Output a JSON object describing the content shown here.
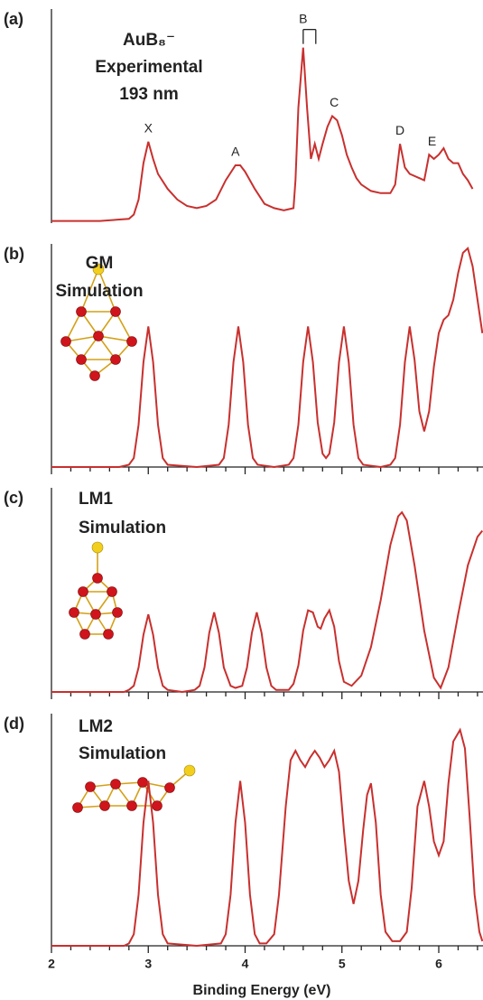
{
  "chart_data": [
    {
      "type": "line",
      "panel_label": "(a)",
      "title": [
        "AuB₈⁻",
        "Experimental",
        "193 nm"
      ],
      "color": "#c8302e",
      "xlim": [
        2,
        6.45
      ],
      "ylim": [
        0,
        1
      ],
      "x": [
        2.0,
        2.5,
        2.8,
        2.85,
        2.9,
        2.95,
        3.0,
        3.05,
        3.1,
        3.2,
        3.3,
        3.4,
        3.5,
        3.6,
        3.7,
        3.8,
        3.9,
        3.95,
        4.0,
        4.1,
        4.2,
        4.3,
        4.4,
        4.5,
        4.52,
        4.55,
        4.6,
        4.64,
        4.68,
        4.72,
        4.76,
        4.8,
        4.85,
        4.9,
        4.95,
        5.0,
        5.05,
        5.1,
        5.15,
        5.2,
        5.3,
        5.4,
        5.5,
        5.55,
        5.6,
        5.65,
        5.7,
        5.8,
        5.85,
        5.9,
        5.95,
        6.0,
        6.05,
        6.1,
        6.15,
        6.2,
        6.25,
        6.3,
        6.35
      ],
      "values": [
        0.01,
        0.01,
        0.02,
        0.04,
        0.11,
        0.28,
        0.38,
        0.3,
        0.23,
        0.16,
        0.11,
        0.08,
        0.07,
        0.08,
        0.11,
        0.2,
        0.27,
        0.27,
        0.24,
        0.16,
        0.09,
        0.07,
        0.06,
        0.07,
        0.2,
        0.54,
        0.82,
        0.54,
        0.3,
        0.37,
        0.3,
        0.37,
        0.45,
        0.5,
        0.48,
        0.41,
        0.32,
        0.26,
        0.21,
        0.18,
        0.15,
        0.14,
        0.14,
        0.18,
        0.37,
        0.26,
        0.23,
        0.21,
        0.2,
        0.32,
        0.3,
        0.32,
        0.35,
        0.3,
        0.28,
        0.28,
        0.23,
        0.2,
        0.16
      ],
      "annotations": [
        {
          "text": "X",
          "x": 3.0
        },
        {
          "text": "A",
          "x": 3.9
        },
        {
          "text": "B",
          "x": 4.6,
          "comb": [
            4.6,
            4.73
          ]
        },
        {
          "text": "C",
          "x": 4.92
        },
        {
          "text": "D",
          "x": 5.6
        },
        {
          "text": "E",
          "x": 5.93
        }
      ]
    },
    {
      "type": "line",
      "panel_label": "(b)",
      "title": [
        "GM",
        "Simulation"
      ],
      "color": "#c8302e",
      "xlim": [
        2,
        6.45
      ],
      "ylim": [
        0,
        1
      ],
      "xticks": [
        2,
        3,
        4,
        5,
        6
      ],
      "xminorticks": [
        2.2,
        2.4,
        2.6,
        2.8,
        3.2,
        3.4,
        3.6,
        3.8,
        4.2,
        4.4,
        4.6,
        4.8,
        5.2,
        5.4,
        5.6,
        5.8,
        6.2,
        6.4
      ],
      "x": [
        2.0,
        2.7,
        2.8,
        2.85,
        2.9,
        2.95,
        3.0,
        3.05,
        3.1,
        3.15,
        3.2,
        3.5,
        3.73,
        3.78,
        3.83,
        3.88,
        3.93,
        3.98,
        4.03,
        4.08,
        4.13,
        4.3,
        4.45,
        4.5,
        4.55,
        4.6,
        4.65,
        4.7,
        4.75,
        4.8,
        4.835,
        4.87,
        4.92,
        4.97,
        5.02,
        5.07,
        5.12,
        5.17,
        5.22,
        5.4,
        5.5,
        5.55,
        5.6,
        5.65,
        5.7,
        5.75,
        5.8,
        5.85,
        5.9,
        5.95,
        6.0,
        6.05,
        6.1,
        6.15,
        6.2,
        6.25,
        6.3,
        6.35,
        6.4,
        6.45
      ],
      "values": [
        0,
        0,
        0.01,
        0.04,
        0.19,
        0.47,
        0.63,
        0.47,
        0.19,
        0.04,
        0.01,
        0,
        0.01,
        0.04,
        0.19,
        0.47,
        0.63,
        0.47,
        0.19,
        0.04,
        0.01,
        0,
        0.01,
        0.04,
        0.19,
        0.47,
        0.63,
        0.47,
        0.2,
        0.06,
        0.04,
        0.06,
        0.2,
        0.47,
        0.63,
        0.47,
        0.19,
        0.04,
        0.01,
        0,
        0.01,
        0.04,
        0.19,
        0.47,
        0.63,
        0.48,
        0.25,
        0.16,
        0.25,
        0.45,
        0.6,
        0.66,
        0.68,
        0.75,
        0.87,
        0.96,
        0.98,
        0.9,
        0.75,
        0.6
      ]
    },
    {
      "type": "line",
      "panel_label": "(c)",
      "title": [
        "LM1",
        "Simulation"
      ],
      "color": "#c8302e",
      "xlim": [
        2,
        6.45
      ],
      "ylim": [
        0,
        1
      ],
      "xticks": [
        2,
        3,
        4,
        5,
        6
      ],
      "xminorticks": [
        2.2,
        2.4,
        2.6,
        2.8,
        3.2,
        3.4,
        3.6,
        3.8,
        4.2,
        4.4,
        4.6,
        4.8,
        5.2,
        5.4,
        5.6,
        5.8,
        6.2,
        6.4
      ],
      "x": [
        2.0,
        2.75,
        2.8,
        2.85,
        2.9,
        2.95,
        3.0,
        3.05,
        3.1,
        3.15,
        3.2,
        3.35,
        3.48,
        3.53,
        3.58,
        3.63,
        3.68,
        3.73,
        3.78,
        3.85,
        3.9,
        3.97,
        4.02,
        4.07,
        4.12,
        4.17,
        4.22,
        4.27,
        4.32,
        4.45,
        4.5,
        4.55,
        4.6,
        4.65,
        4.7,
        4.75,
        4.78,
        4.82,
        4.87,
        4.92,
        4.97,
        5.02,
        5.1,
        5.2,
        5.3,
        5.4,
        5.5,
        5.58,
        5.62,
        5.67,
        5.75,
        5.85,
        5.95,
        6.02,
        6.1,
        6.2,
        6.3,
        6.4,
        6.45
      ],
      "values": [
        0,
        0,
        0.01,
        0.03,
        0.12,
        0.28,
        0.38,
        0.28,
        0.12,
        0.03,
        0.01,
        0,
        0.01,
        0.03,
        0.12,
        0.29,
        0.39,
        0.29,
        0.12,
        0.03,
        0.02,
        0.03,
        0.12,
        0.29,
        0.39,
        0.29,
        0.12,
        0.03,
        0.01,
        0.01,
        0.04,
        0.13,
        0.3,
        0.4,
        0.39,
        0.32,
        0.31,
        0.36,
        0.4,
        0.32,
        0.15,
        0.05,
        0.03,
        0.08,
        0.22,
        0.45,
        0.72,
        0.86,
        0.88,
        0.84,
        0.62,
        0.3,
        0.07,
        0.02,
        0.12,
        0.38,
        0.62,
        0.76,
        0.79
      ]
    },
    {
      "type": "line",
      "panel_label": "(d)",
      "title": [
        "LM2",
        "Simulation"
      ],
      "color": "#c8302e",
      "xlim": [
        2,
        6.45
      ],
      "ylim": [
        0,
        1
      ],
      "xticks": [
        2,
        3,
        4,
        5,
        6
      ],
      "tick_labels": true,
      "xminorticks": [
        2.2,
        2.4,
        2.6,
        2.8,
        3.2,
        3.4,
        3.6,
        3.8,
        4.2,
        4.4,
        4.6,
        4.8,
        5.2,
        5.4,
        5.6,
        5.8,
        6.2,
        6.4
      ],
      "xlabel": "Binding Energy (eV)",
      "x": [
        2.0,
        2.75,
        2.8,
        2.85,
        2.9,
        2.95,
        3.0,
        3.05,
        3.1,
        3.15,
        3.2,
        3.5,
        3.75,
        3.8,
        3.85,
        3.9,
        3.95,
        4.0,
        4.05,
        4.1,
        4.15,
        4.22,
        4.3,
        4.35,
        4.42,
        4.47,
        4.52,
        4.57,
        4.62,
        4.67,
        4.72,
        4.77,
        4.82,
        4.87,
        4.92,
        4.97,
        5.02,
        5.07,
        5.12,
        5.17,
        5.22,
        5.26,
        5.3,
        5.35,
        5.4,
        5.45,
        5.52,
        5.6,
        5.67,
        5.72,
        5.78,
        5.85,
        5.9,
        5.95,
        6.0,
        6.05,
        6.1,
        6.15,
        6.22,
        6.27,
        6.32,
        6.37,
        6.42,
        6.45
      ],
      "values": [
        0,
        0,
        0.01,
        0.05,
        0.22,
        0.53,
        0.71,
        0.53,
        0.22,
        0.05,
        0.01,
        0,
        0.01,
        0.05,
        0.22,
        0.53,
        0.71,
        0.53,
        0.22,
        0.05,
        0.01,
        0.01,
        0.05,
        0.22,
        0.6,
        0.8,
        0.84,
        0.8,
        0.77,
        0.81,
        0.84,
        0.81,
        0.77,
        0.8,
        0.84,
        0.75,
        0.5,
        0.28,
        0.18,
        0.28,
        0.5,
        0.65,
        0.7,
        0.53,
        0.22,
        0.06,
        0.02,
        0.02,
        0.06,
        0.25,
        0.6,
        0.71,
        0.6,
        0.45,
        0.39,
        0.45,
        0.7,
        0.88,
        0.93,
        0.85,
        0.55,
        0.22,
        0.06,
        0.02
      ]
    }
  ]
}
